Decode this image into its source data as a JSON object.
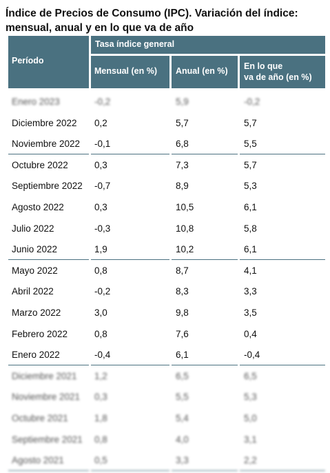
{
  "title": "Índice de Precios de Consumo (IPC). Variación del índice: mensual, anual y en lo que va de año",
  "header": {
    "periodo": "Período",
    "group": "Tasa índice general",
    "mensual": "Mensual (en %)",
    "anual": "Anual (en %)",
    "ytd_line1": "En lo que",
    "ytd_line2": "va de año (en %)"
  },
  "rows": [
    {
      "periodo": "Enero 2023",
      "mensual": "-0,2",
      "anual": "5,9",
      "ytd": "-0,2",
      "blurred": true
    },
    {
      "periodo": "Diciembre 2022",
      "mensual": "0,2",
      "anual": "5,7",
      "ytd": "5,7"
    },
    {
      "periodo": "Noviembre 2022",
      "mensual": "-0,1",
      "anual": "6,8",
      "ytd": "5,5",
      "sep": true
    },
    {
      "periodo": "Octubre 2022",
      "mensual": "0,3",
      "anual": "7,3",
      "ytd": "5,7"
    },
    {
      "periodo": "Septiembre 2022",
      "mensual": "-0,7",
      "anual": "8,9",
      "ytd": "5,3"
    },
    {
      "periodo": "Agosto 2022",
      "mensual": "0,3",
      "anual": "10,5",
      "ytd": "6,1"
    },
    {
      "periodo": "Julio 2022",
      "mensual": "-0,3",
      "anual": "10,8",
      "ytd": "5,8"
    },
    {
      "periodo": "Junio 2022",
      "mensual": "1,9",
      "anual": "10,2",
      "ytd": "6,1",
      "sep": true
    },
    {
      "periodo": "Mayo 2022",
      "mensual": "0,8",
      "anual": "8,7",
      "ytd": "4,1"
    },
    {
      "periodo": "Abril 2022",
      "mensual": "-0,2",
      "anual": "8,3",
      "ytd": "3,3"
    },
    {
      "periodo": "Marzo 2022",
      "mensual": "3,0",
      "anual": "9,8",
      "ytd": "3,5"
    },
    {
      "periodo": "Febrero 2022",
      "mensual": "0,8",
      "anual": "7,6",
      "ytd": "0,4"
    },
    {
      "periodo": "Enero 2022",
      "mensual": "-0,4",
      "anual": "6,1",
      "ytd": "-0,4",
      "sep": true
    },
    {
      "periodo": "Diciembre 2021",
      "mensual": "1,2",
      "anual": "6,5",
      "ytd": "6,5",
      "blurred": true
    },
    {
      "periodo": "Noviembre 2021",
      "mensual": "0,3",
      "anual": "5,5",
      "ytd": "5,3",
      "blurred": true
    },
    {
      "periodo": "Octubre 2021",
      "mensual": "1,8",
      "anual": "5,4",
      "ytd": "5,0",
      "blurred": true
    },
    {
      "periodo": "Septiembre 2021",
      "mensual": "0,8",
      "anual": "4,0",
      "ytd": "3,1",
      "blurred": true
    },
    {
      "periodo": "Agosto 2021",
      "mensual": "0,5",
      "anual": "3,3",
      "ytd": "2,2",
      "blurred": true,
      "sep": true
    }
  ],
  "colors": {
    "header_bg": "#4a7180",
    "header_text": "#ffffff"
  }
}
